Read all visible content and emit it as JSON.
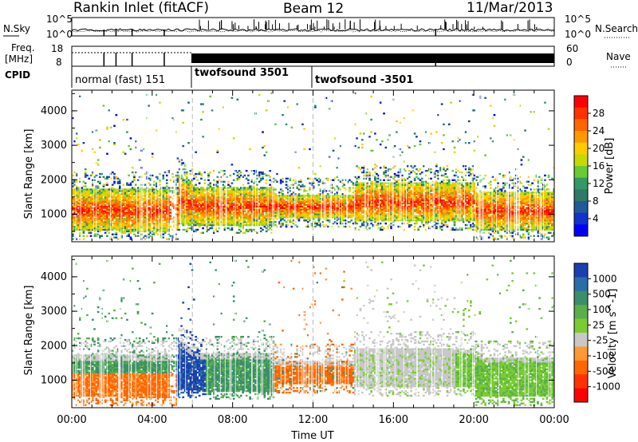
{
  "header": {
    "station": "Rankin Inlet (fitACF)",
    "beam": "Beam 12",
    "date": "11/Mar/2013"
  },
  "chart_data": [
    {
      "type": "line",
      "panel": "noise-and-search",
      "left_label": "N.Sky",
      "right_label": "N.Search",
      "left_ticks": [
        "10^5",
        "10^0"
      ],
      "right_ticks": [
        "10^5",
        "10^0"
      ]
    },
    {
      "type": "line",
      "panel": "frequency-and-nave",
      "left_label_1": "Freq.",
      "left_label_2": "[MHz]",
      "right_label": "Nave",
      "left_ticks": [
        "18",
        "8"
      ],
      "right_ticks": [
        "60",
        "0"
      ],
      "cpid_label": "CPID",
      "cpid_segments": [
        {
          "label": "normal (fast) 151",
          "start_hour": 0,
          "end_hour": 6
        },
        {
          "label": "twofsound 3501",
          "start_hour": 6,
          "end_hour": 12
        },
        {
          "label": "twofsound -3501",
          "start_hour": 12,
          "end_hour": 24
        }
      ]
    },
    {
      "type": "heatmap",
      "panel": "power",
      "ylabel": "Slant Range [km]",
      "xlim": [
        0,
        24
      ],
      "ylim": [
        200,
        4600
      ],
      "yticks": [
        "1000",
        "2000",
        "3000",
        "4000"
      ],
      "colorbar": {
        "label": "Power [dB]",
        "ticks": [
          "28",
          "24",
          "20",
          "16",
          "12",
          "8",
          "4"
        ],
        "colors": [
          "#ff0000",
          "#ff3300",
          "#ff6600",
          "#ff9900",
          "#ffcc00",
          "#c8d800",
          "#66cc33",
          "#339966",
          "#2e7a66",
          "#205a99",
          "#1033cc",
          "#0000ff"
        ]
      }
    },
    {
      "type": "heatmap",
      "panel": "velocity",
      "ylabel": "Slant Range [km]",
      "xlabel": "Time UT",
      "xlim": [
        0,
        24
      ],
      "ylim": [
        200,
        4600
      ],
      "yticks": [
        "1000",
        "2000",
        "3000",
        "4000"
      ],
      "xticks": [
        "00:00",
        "04:00",
        "08:00",
        "12:00",
        "16:00",
        "20:00",
        "00:00"
      ],
      "colorbar": {
        "label": "Velocity [m s^-1]",
        "ticks": [
          "1000",
          "500",
          "100",
          "25",
          "-25",
          "-100",
          "-500",
          "-1000"
        ],
        "colors": [
          "#1a3fb0",
          "#2a6ea8",
          "#3a8f6a",
          "#5aaf4a",
          "#7acc33",
          "#c8c8c8",
          "#ff9933",
          "#ff6600",
          "#ff3300",
          "#ff0000"
        ]
      }
    }
  ]
}
